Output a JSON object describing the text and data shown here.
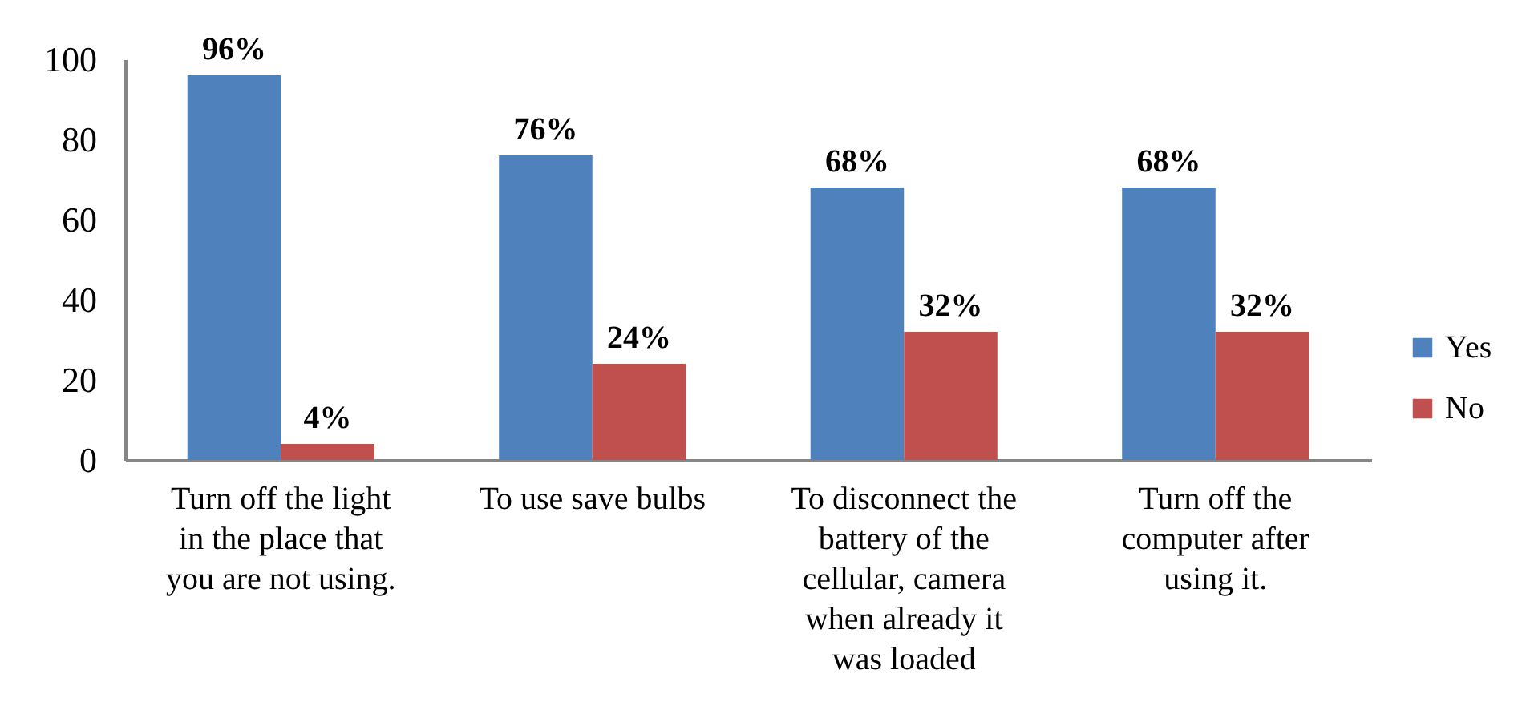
{
  "chart_data": {
    "type": "bar",
    "categories": [
      "Turn off the light in the place that you are not using.",
      "To use save bulbs",
      "To disconnect the battery of the cellular, camera when already it was loaded",
      "Turn off the computer after using it."
    ],
    "series": [
      {
        "name": "Yes",
        "color": "#4f81bd",
        "values": [
          96,
          76,
          68,
          68
        ],
        "value_labels": [
          "96%",
          "76%",
          "68%",
          "68%"
        ]
      },
      {
        "name": "No",
        "color": "#c0504d",
        "values": [
          4,
          24,
          32,
          32
        ],
        "value_labels": [
          "4%",
          "24%",
          "32%",
          "32%"
        ]
      }
    ],
    "ylim": [
      0,
      100
    ],
    "yticks": [
      0,
      20,
      40,
      60,
      80,
      100
    ],
    "grid": false,
    "legend": "right"
  }
}
